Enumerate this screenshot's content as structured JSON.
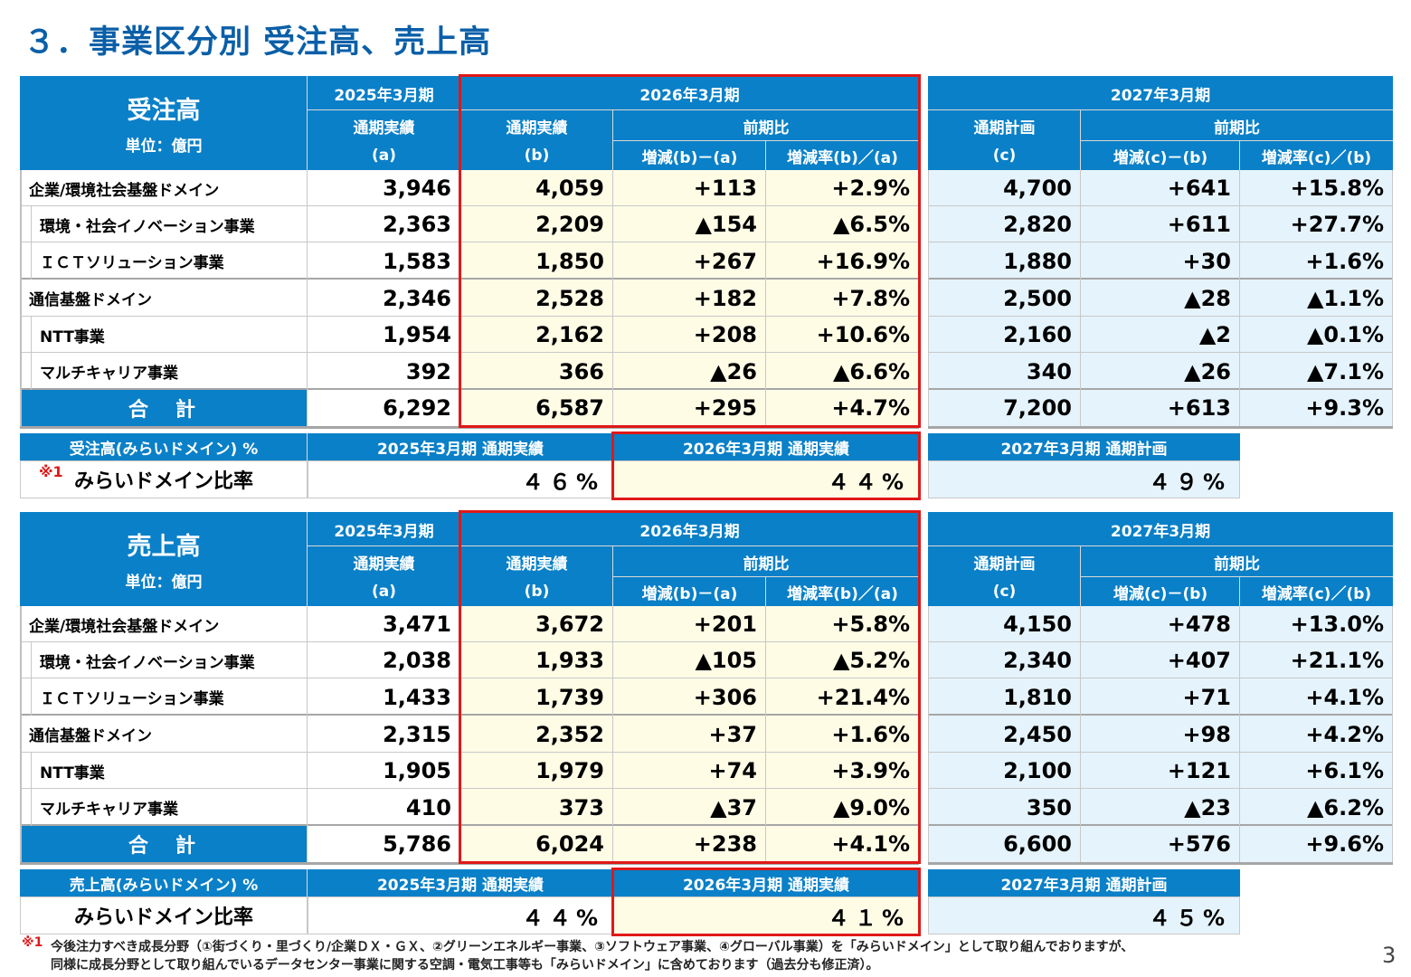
{
  "page": {
    "title": "３．事業区分別 受注高、売上高",
    "page_number": "3"
  },
  "headers": {
    "fy2025": "2025年3月期",
    "fy2026": "2026年3月期",
    "fy2027": "2027年3月期",
    "actual": "通期実績",
    "plan": "通期計画",
    "yoy": "前期比",
    "a": "(a)",
    "b": "(b)",
    "c": "(c)",
    "diff_ba": "増減(b)－(a)",
    "rate_ba": "増減率(b)／(a)",
    "diff_cb": "増減(c)－(b)",
    "rate_cb": "増減率(c)／(b)",
    "unit": "単位：億円"
  },
  "orders": {
    "title": "受注高",
    "rows": [
      {
        "label": "企業/環境社会基盤ドメイン",
        "indent": false,
        "vals": [
          "3,946",
          "4,059",
          "+113",
          "+2.9%",
          "4,700",
          "+641",
          "+15.8%"
        ]
      },
      {
        "label": "環境・社会イノベーション事業",
        "indent": true,
        "vals": [
          "2,363",
          "2,209",
          "▲154",
          "▲6.5%",
          "2,820",
          "+611",
          "+27.7%"
        ]
      },
      {
        "label": "ＩＣＴソリューション事業",
        "indent": true,
        "vals": [
          "1,583",
          "1,850",
          "+267",
          "+16.9%",
          "1,880",
          "+30",
          "+1.6%"
        ]
      },
      {
        "label": "通信基盤ドメイン",
        "indent": false,
        "vals": [
          "2,346",
          "2,528",
          "+182",
          "+7.8%",
          "2,500",
          "▲28",
          "▲1.1%"
        ]
      },
      {
        "label": "NTT事業",
        "indent": true,
        "vals": [
          "1,954",
          "2,162",
          "+208",
          "+10.6%",
          "2,160",
          "▲2",
          "▲0.1%"
        ]
      },
      {
        "label": "マルチキャリア事業",
        "indent": true,
        "vals": [
          "392",
          "366",
          "▲26",
          "▲6.6%",
          "340",
          "▲26",
          "▲7.1%"
        ]
      }
    ],
    "total": {
      "label": "合　計",
      "vals": [
        "6,292",
        "6,587",
        "+295",
        "+4.7%",
        "7,200",
        "+613",
        "+9.3%"
      ]
    },
    "mirai": {
      "header": "受注高(みらいドメイン) %",
      "h2025": "2025年3月期 通期実績",
      "h2026": "2026年3月期 通期実績",
      "h2027": "2027年3月期 通期計画",
      "mark": "※1",
      "label": "みらいドメイン比率",
      "v2025": "４６%",
      "v2026": "４４%",
      "v2027": "４９%"
    }
  },
  "sales": {
    "title": "売上高",
    "rows": [
      {
        "label": "企業/環境社会基盤ドメイン",
        "indent": false,
        "vals": [
          "3,471",
          "3,672",
          "+201",
          "+5.8%",
          "4,150",
          "+478",
          "+13.0%"
        ]
      },
      {
        "label": "環境・社会イノベーション事業",
        "indent": true,
        "vals": [
          "2,038",
          "1,933",
          "▲105",
          "▲5.2%",
          "2,340",
          "+407",
          "+21.1%"
        ]
      },
      {
        "label": "ＩＣＴソリューション事業",
        "indent": true,
        "vals": [
          "1,433",
          "1,739",
          "+306",
          "+21.4%",
          "1,810",
          "+71",
          "+4.1%"
        ]
      },
      {
        "label": "通信基盤ドメイン",
        "indent": false,
        "vals": [
          "2,315",
          "2,352",
          "+37",
          "+1.6%",
          "2,450",
          "+98",
          "+4.2%"
        ]
      },
      {
        "label": "NTT事業",
        "indent": true,
        "vals": [
          "1,905",
          "1,979",
          "+74",
          "+3.9%",
          "2,100",
          "+121",
          "+6.1%"
        ]
      },
      {
        "label": "マルチキャリア事業",
        "indent": true,
        "vals": [
          "410",
          "373",
          "▲37",
          "▲9.0%",
          "350",
          "▲23",
          "▲6.2%"
        ]
      }
    ],
    "total": {
      "label": "合　計",
      "vals": [
        "5,786",
        "6,024",
        "+238",
        "+4.1%",
        "6,600",
        "+576",
        "+9.6%"
      ]
    },
    "mirai": {
      "header": "売上高(みらいドメイン) %",
      "h2025": "2025年3月期 通期実績",
      "h2026": "2026年3月期 通期実績",
      "h2027": "2027年3月期 通期計画",
      "mark": "",
      "label": "みらいドメイン比率",
      "v2025": "４４%",
      "v2026": "４１%",
      "v2027": "４５%"
    }
  },
  "footnote": {
    "mark": "※1",
    "line1": "今後注力すべき成長分野（①街づくり・里づくり/企業ＤＸ・ＧＸ、②グリーンエネルギー事業、③ソフトウェア事業、④グローバル事業）を「みらいドメイン」として取り組んでおりますが、",
    "line2": "同様に成長分野として取り組んでいるデータセンター事業に関する空調・電気工事等も「みらいドメイン」に含めております（過去分も修正済）。"
  }
}
